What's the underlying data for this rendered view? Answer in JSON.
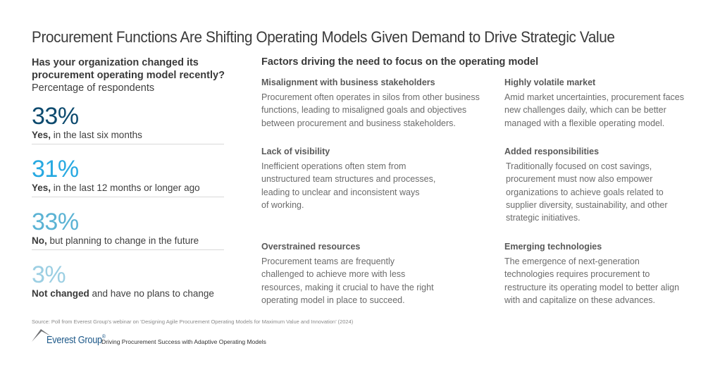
{
  "title": "Procurement Functions Are Shifting Operating Models Given Demand to Drive Strategic Value",
  "survey": {
    "question_line1": "Has your organization changed its",
    "question_line2": "procurement operating model recently?",
    "subtitle": "Percentage of respondents",
    "results": [
      {
        "value": "33%",
        "bold": "Yes,",
        "text": " in the last six months",
        "color": "#0d4a6e"
      },
      {
        "value": "31%",
        "bold": "Yes,",
        "text": " in the last 12 months or longer ago",
        "color": "#27a9e1"
      },
      {
        "value": "33%",
        "bold": "No,",
        "text": " but planning to change in the future",
        "color": "#5bb3d4"
      },
      {
        "value": "3%",
        "bold": "Not changed",
        "text": " and have no plans to change",
        "color": "#9ccfe3"
      }
    ]
  },
  "factors": {
    "title": "Factors driving the need to focus on the operating model",
    "items": [
      {
        "heading": "Misalignment with business stakeholders",
        "lines": [
          "Procurement often operates in silos from other business",
          "functions, leading to misaligned goals and objectives",
          "between procurement and business stakeholders."
        ]
      },
      {
        "heading": "Highly volatile market",
        "lines": [
          "Amid market uncertainties, procurement faces",
          "new challenges daily, which can be better",
          "managed with a flexible operating model."
        ]
      },
      {
        "heading": "Lack of visibility",
        "lines": [
          "Inefficient operations often stem from",
          "unstructured team structures and processes,",
          "leading to unclear and inconsistent ways",
          "of working."
        ]
      },
      {
        "heading": "Added responsibilities",
        "lines": [
          "Traditionally focused on cost savings,",
          "procurement must now also empower",
          "organizations to achieve goals related to",
          "supplier diversity, sustainability, and other",
          "strategic initiatives."
        ]
      },
      {
        "heading": "Overstrained resources",
        "lines": [
          "Procurement teams are frequently",
          "challenged to achieve more with less",
          "resources, making it crucial to have the right",
          "operating model in place to succeed."
        ]
      },
      {
        "heading": "Emerging technologies",
        "lines": [
          "The emergence of next-generation",
          "technologies requires procurement to",
          "restructure its operating model to better align",
          "with and capitalize on these advances."
        ]
      }
    ]
  },
  "source": "Source: Poll from Everest Group's webinar on ‘Designing Agile Procurement Operating Models for Maximum Value and Innovation’ (2024)",
  "footer": {
    "logo_text": "Everest Group",
    "logo_reg": "®",
    "tagline": "Driving Procurement Success with Adaptive Operating Models",
    "logo_color": "#1f5a8a"
  },
  "chart_data": {
    "type": "table",
    "title": "Has your organization changed its procurement operating model recently?",
    "subtitle": "Percentage of respondents",
    "categories": [
      "Yes, in the last six months",
      "Yes, in the last 12 months or longer ago",
      "No, but planning to change in the future",
      "Not changed and have no plans to change"
    ],
    "values": [
      33,
      31,
      33,
      3
    ],
    "unit": "%"
  }
}
